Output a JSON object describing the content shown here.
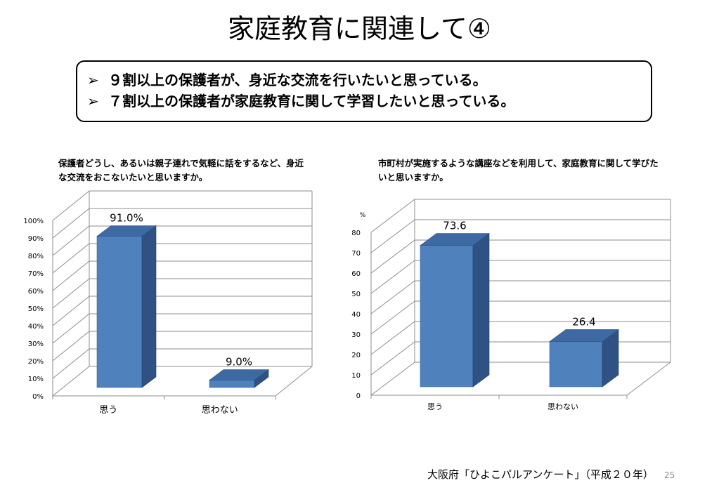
{
  "slide": {
    "title": "家庭教育に関連して④",
    "bullets": [
      {
        "icon": "arrow-bullet-icon",
        "marker": "➢",
        "text": "９割以上の保護者が、身近な交流を行いたいと思っている。"
      },
      {
        "icon": "arrow-bullet-icon",
        "marker": "➢",
        "text": "７割以上の保護者が家庭教育に関して学習したいと思っている。"
      }
    ],
    "source": "大阪府「ひよこパルアンケート」（平成２０年）",
    "page_number": "25"
  },
  "chart_data": [
    {
      "type": "bar",
      "title": "保護者どうし、あるいは親子連れで気軽に話をするなど、身近な交流をおこないたいと思いますか。",
      "categories": [
        "思う",
        "思わない"
      ],
      "values": [
        91.0,
        9.0
      ],
      "data_labels": [
        "91.0%",
        "9.0%"
      ],
      "yticks": [
        "0%",
        "10%",
        "20%",
        "30%",
        "40%",
        "50%",
        "60%",
        "70%",
        "80%",
        "90%",
        "100%"
      ],
      "ylim": [
        0,
        100
      ],
      "ylabel": "",
      "grid": true,
      "legend": "none",
      "bar_color": "#4F81BD"
    },
    {
      "type": "bar",
      "title": "市町村が実施するような講座などを利用して、家庭教育に関して学びたいと思いますか。",
      "categories": [
        "思う",
        "思わない"
      ],
      "values": [
        73.6,
        26.4
      ],
      "data_labels": [
        "73.6",
        "26.4"
      ],
      "yticks": [
        "0",
        "10",
        "20",
        "30",
        "40",
        "50",
        "60",
        "70",
        "80"
      ],
      "ylim": [
        0,
        80
      ],
      "ylabel": "%",
      "grid": true,
      "legend": "none",
      "bar_color": "#4F81BD"
    }
  ]
}
